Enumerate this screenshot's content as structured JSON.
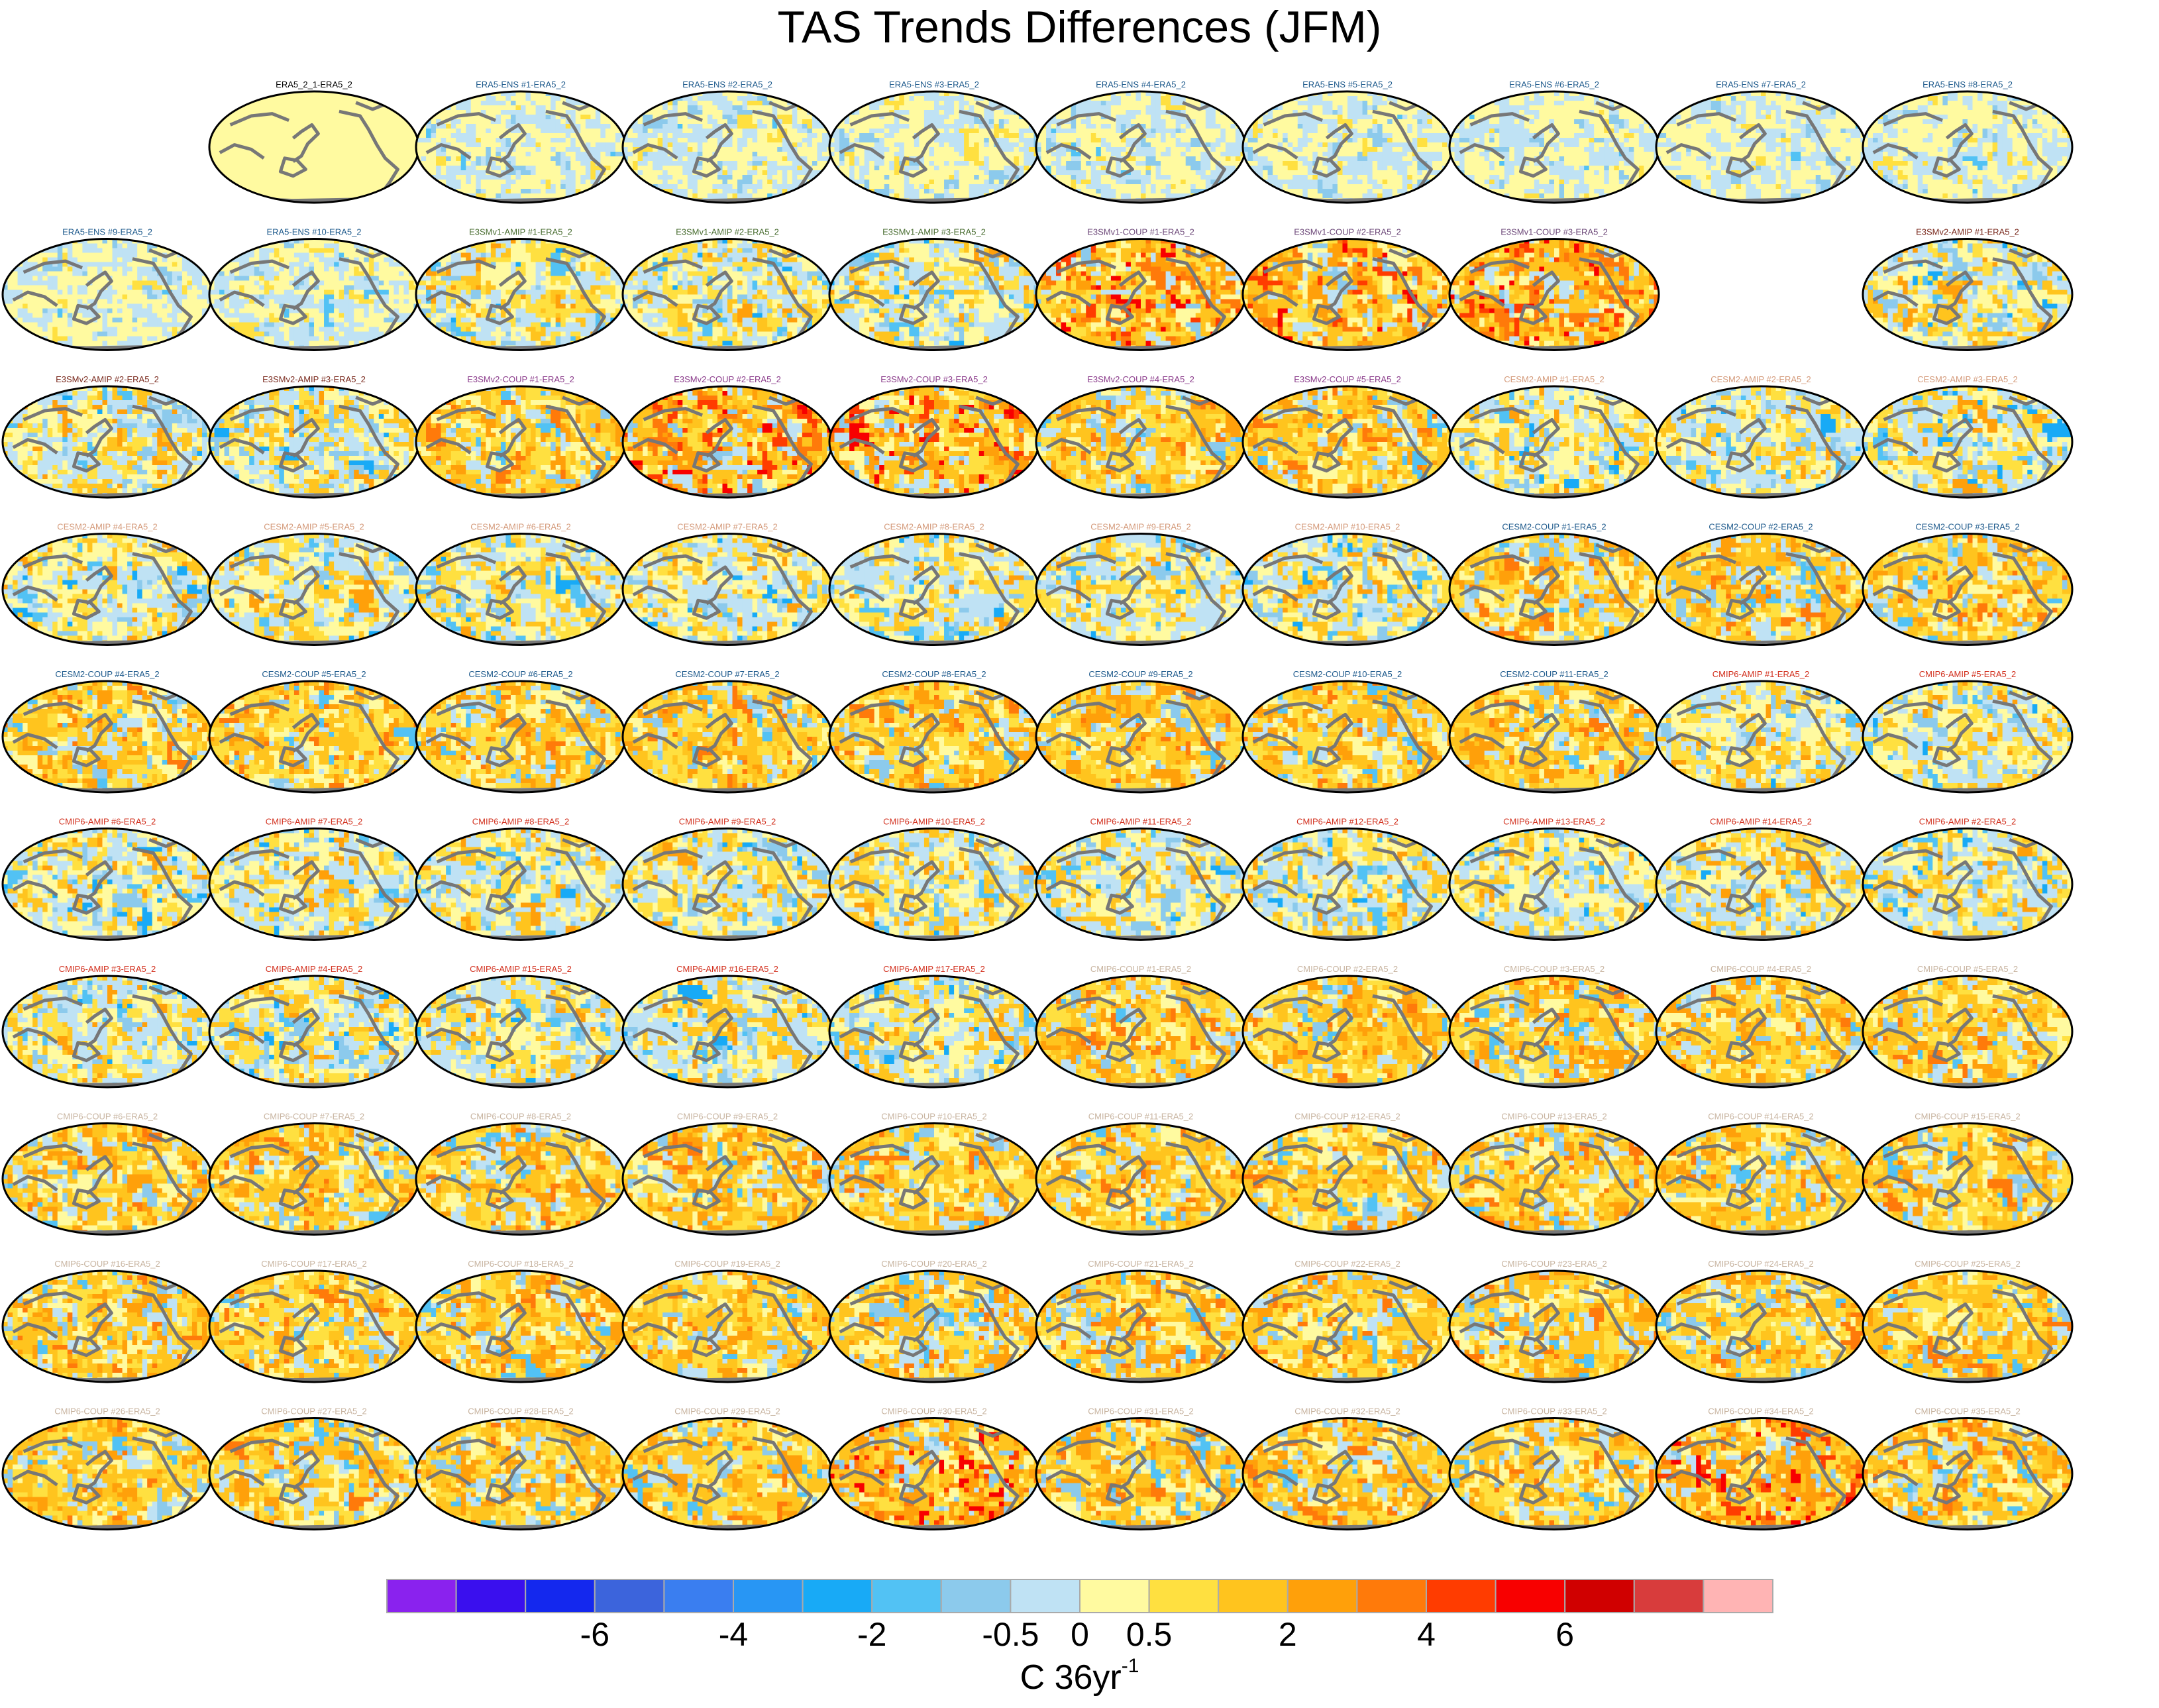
{
  "chart_data": {
    "type": "heatmap",
    "title": "TAS Trends Differences (JFM)",
    "units": "C 36yr",
    "units_superscript": "-1",
    "colorbar": {
      "colors": [
        "#8a22ee",
        "#3a0fee",
        "#1428ee",
        "#3c64dc",
        "#3a7ef0",
        "#2896f4",
        "#18aaf6",
        "#52c2f4",
        "#8ccaec",
        "#bfe2f4",
        "#fffaa0",
        "#ffe040",
        "#ffc41e",
        "#ffa00a",
        "#ff7a0a",
        "#ff3c00",
        "#f80000",
        "#d00000",
        "#d83c3c",
        "#ffb4b4"
      ],
      "tick_labels": [
        {
          "label": "-6",
          "boundary": 3
        },
        {
          "label": "-4",
          "boundary": 5
        },
        {
          "label": "-2",
          "boundary": 7
        },
        {
          "label": "-0.5",
          "boundary": 9
        },
        {
          "label": "0",
          "boundary": 10
        },
        {
          "label": "0.5",
          "boundary": 11
        },
        {
          "label": "2",
          "boundary": 13
        },
        {
          "label": "4",
          "boundary": 15
        },
        {
          "label": "6",
          "boundary": 17
        }
      ]
    },
    "group_colors": {
      "obs": "#000000",
      "ens": "#1e5a8c",
      "e3smv1": "#4a6e32",
      "e3smv1c": "#6e4a7a",
      "e3smv2": "#7a2a1e",
      "e3smv2c": "#8a3a8a",
      "cesm2a": "#d49a7a",
      "cesm2c": "#1e5a8c",
      "cmip6a": "#d2301e",
      "cmip6c": "#c8b4a0"
    },
    "panels": [
      [
        null,
        {
          "label": "ERA5_2_1-ERA5_2",
          "group": "obs",
          "style": "uniform"
        },
        {
          "label": "ERA5-ENS    #1-ERA5_2",
          "group": "ens",
          "style": "ens"
        },
        {
          "label": "ERA5-ENS    #2-ERA5_2",
          "group": "ens",
          "style": "ens"
        },
        {
          "label": "ERA5-ENS    #3-ERA5_2",
          "group": "ens",
          "style": "ens"
        },
        {
          "label": "ERA5-ENS    #4-ERA5_2",
          "group": "ens",
          "style": "ens"
        },
        {
          "label": "ERA5-ENS    #5-ERA5_2",
          "group": "ens",
          "style": "ens"
        },
        {
          "label": "ERA5-ENS    #6-ERA5_2",
          "group": "ens",
          "style": "ens"
        },
        {
          "label": "ERA5-ENS    #7-ERA5_2",
          "group": "ens",
          "style": "ens"
        },
        {
          "label": "ERA5-ENS    #8-ERA5_2",
          "group": "ens",
          "style": "ens"
        }
      ],
      [
        {
          "label": "ERA5-ENS    #9-ERA5_2",
          "group": "ens",
          "style": "ens"
        },
        {
          "label": "ERA5-ENS    #10-ERA5_2",
          "group": "ens",
          "style": "ens"
        },
        {
          "label": "E3SMv1-AMIP #1-ERA5_2",
          "group": "e3smv1",
          "style": "amip"
        },
        {
          "label": "E3SMv1-AMIP #2-ERA5_2",
          "group": "e3smv1",
          "style": "amip"
        },
        {
          "label": "E3SMv1-AMIP #3-ERA5_2",
          "group": "e3smv1",
          "style": "amip"
        },
        {
          "label": "E3SMv1-COUP #1-ERA5_2",
          "group": "e3smv1c",
          "style": "hot"
        },
        {
          "label": "E3SMv1-COUP #2-ERA5_2",
          "group": "e3smv1c",
          "style": "hot"
        },
        {
          "label": "E3SMv1-COUP #3-ERA5_2",
          "group": "e3smv1c",
          "style": "hot"
        },
        null,
        {
          "label": "E3SMv2-AMIP #1-ERA5_2",
          "group": "e3smv2",
          "style": "amip"
        }
      ],
      [
        {
          "label": "E3SMv2-AMIP #2-ERA5_2",
          "group": "e3smv2",
          "style": "amip"
        },
        {
          "label": "E3SMv2-AMIP #3-ERA5_2",
          "group": "e3smv2",
          "style": "amip"
        },
        {
          "label": "E3SMv2-COUP #1-ERA5_2",
          "group": "e3smv2c",
          "style": "coup"
        },
        {
          "label": "E3SMv2-COUP #2-ERA5_2",
          "group": "e3smv2c",
          "style": "hot"
        },
        {
          "label": "E3SMv2-COUP #3-ERA5_2",
          "group": "e3smv2c",
          "style": "hot"
        },
        {
          "label": "E3SMv2-COUP #4-ERA5_2",
          "group": "e3smv2c",
          "style": "coup"
        },
        {
          "label": "E3SMv2-COUP #5-ERA5_2",
          "group": "e3smv2c",
          "style": "coup"
        },
        {
          "label": "CESM2-AMIP  #1-ERA5_2",
          "group": "cesm2a",
          "style": "amip"
        },
        {
          "label": "CESM2-AMIP  #2-ERA5_2",
          "group": "cesm2a",
          "style": "amip"
        },
        {
          "label": "CESM2-AMIP  #3-ERA5_2",
          "group": "cesm2a",
          "style": "amip"
        }
      ],
      [
        {
          "label": "CESM2-AMIP  #4-ERA5_2",
          "group": "cesm2a",
          "style": "amip"
        },
        {
          "label": "CESM2-AMIP  #5-ERA5_2",
          "group": "cesm2a",
          "style": "amip"
        },
        {
          "label": "CESM2-AMIP  #6-ERA5_2",
          "group": "cesm2a",
          "style": "amip"
        },
        {
          "label": "CESM2-AMIP  #7-ERA5_2",
          "group": "cesm2a",
          "style": "amip"
        },
        {
          "label": "CESM2-AMIP  #8-ERA5_2",
          "group": "cesm2a",
          "style": "amip"
        },
        {
          "label": "CESM2-AMIP  #9-ERA5_2",
          "group": "cesm2a",
          "style": "amip"
        },
        {
          "label": "CESM2-AMIP  #10-ERA5_2",
          "group": "cesm2a",
          "style": "amip"
        },
        {
          "label": "CESM2-COUP  #1-ERA5_2",
          "group": "cesm2c",
          "style": "coup"
        },
        {
          "label": "CESM2-COUP  #2-ERA5_2",
          "group": "cesm2c",
          "style": "coup"
        },
        {
          "label": "CESM2-COUP  #3-ERA5_2",
          "group": "cesm2c",
          "style": "coup"
        }
      ],
      [
        {
          "label": "CESM2-COUP  #4-ERA5_2",
          "group": "cesm2c",
          "style": "coup"
        },
        {
          "label": "CESM2-COUP  #5-ERA5_2",
          "group": "cesm2c",
          "style": "coup"
        },
        {
          "label": "CESM2-COUP  #6-ERA5_2",
          "group": "cesm2c",
          "style": "coup"
        },
        {
          "label": "CESM2-COUP  #7-ERA5_2",
          "group": "cesm2c",
          "style": "coup"
        },
        {
          "label": "CESM2-COUP  #8-ERA5_2",
          "group": "cesm2c",
          "style": "coup"
        },
        {
          "label": "CESM2-COUP  #9-ERA5_2",
          "group": "cesm2c",
          "style": "coup"
        },
        {
          "label": "CESM2-COUP  #10-ERA5_2",
          "group": "cesm2c",
          "style": "coup"
        },
        {
          "label": "CESM2-COUP  #11-ERA5_2",
          "group": "cesm2c",
          "style": "coup"
        },
        {
          "label": "CMIP6-AMIP  #1-ERA5_2",
          "group": "cmip6a",
          "style": "amip"
        },
        {
          "label": "CMIP6-AMIP  #5-ERA5_2",
          "group": "cmip6a",
          "style": "amip"
        }
      ],
      [
        {
          "label": "CMIP6-AMIP  #6-ERA5_2",
          "group": "cmip6a",
          "style": "amip"
        },
        {
          "label": "CMIP6-AMIP  #7-ERA5_2",
          "group": "cmip6a",
          "style": "amip"
        },
        {
          "label": "CMIP6-AMIP  #8-ERA5_2",
          "group": "cmip6a",
          "style": "amip"
        },
        {
          "label": "CMIP6-AMIP  #9-ERA5_2",
          "group": "cmip6a",
          "style": "amip"
        },
        {
          "label": "CMIP6-AMIP  #10-ERA5_2",
          "group": "cmip6a",
          "style": "amip"
        },
        {
          "label": "CMIP6-AMIP  #11-ERA5_2",
          "group": "cmip6a",
          "style": "amip"
        },
        {
          "label": "CMIP6-AMIP  #12-ERA5_2",
          "group": "cmip6a",
          "style": "amip"
        },
        {
          "label": "CMIP6-AMIP  #13-ERA5_2",
          "group": "cmip6a",
          "style": "amip"
        },
        {
          "label": "CMIP6-AMIP  #14-ERA5_2",
          "group": "cmip6a",
          "style": "amip"
        },
        {
          "label": "CMIP6-AMIP  #2-ERA5_2",
          "group": "cmip6a",
          "style": "amip"
        }
      ],
      [
        {
          "label": "CMIP6-AMIP  #3-ERA5_2",
          "group": "cmip6a",
          "style": "amip"
        },
        {
          "label": "CMIP6-AMIP  #4-ERA5_2",
          "group": "cmip6a",
          "style": "amip"
        },
        {
          "label": "CMIP6-AMIP  #15-ERA5_2",
          "group": "cmip6a",
          "style": "amip"
        },
        {
          "label": "CMIP6-AMIP  #16-ERA5_2",
          "group": "cmip6a",
          "style": "amip"
        },
        {
          "label": "CMIP6-AMIP  #17-ERA5_2",
          "group": "cmip6a",
          "style": "amip"
        },
        {
          "label": "CMIP6-COUP  #1-ERA5_2",
          "group": "cmip6c",
          "style": "coup"
        },
        {
          "label": "CMIP6-COUP  #2-ERA5_2",
          "group": "cmip6c",
          "style": "coup"
        },
        {
          "label": "CMIP6-COUP  #3-ERA5_2",
          "group": "cmip6c",
          "style": "coup"
        },
        {
          "label": "CMIP6-COUP  #4-ERA5_2",
          "group": "cmip6c",
          "style": "coup"
        },
        {
          "label": "CMIP6-COUP  #5-ERA5_2",
          "group": "cmip6c",
          "style": "coup"
        }
      ],
      [
        {
          "label": "CMIP6-COUP  #6-ERA5_2",
          "group": "cmip6c",
          "style": "coup"
        },
        {
          "label": "CMIP6-COUP  #7-ERA5_2",
          "group": "cmip6c",
          "style": "coup"
        },
        {
          "label": "CMIP6-COUP  #8-ERA5_2",
          "group": "cmip6c",
          "style": "coup"
        },
        {
          "label": "CMIP6-COUP  #9-ERA5_2",
          "group": "cmip6c",
          "style": "coup"
        },
        {
          "label": "CMIP6-COUP  #10-ERA5_2",
          "group": "cmip6c",
          "style": "coup"
        },
        {
          "label": "CMIP6-COUP  #11-ERA5_2",
          "group": "cmip6c",
          "style": "coup"
        },
        {
          "label": "CMIP6-COUP  #12-ERA5_2",
          "group": "cmip6c",
          "style": "coup"
        },
        {
          "label": "CMIP6-COUP  #13-ERA5_2",
          "group": "cmip6c",
          "style": "coup"
        },
        {
          "label": "CMIP6-COUP  #14-ERA5_2",
          "group": "cmip6c",
          "style": "coup"
        },
        {
          "label": "CMIP6-COUP  #15-ERA5_2",
          "group": "cmip6c",
          "style": "coup"
        }
      ],
      [
        {
          "label": "CMIP6-COUP  #16-ERA5_2",
          "group": "cmip6c",
          "style": "coup"
        },
        {
          "label": "CMIP6-COUP  #17-ERA5_2",
          "group": "cmip6c",
          "style": "coup"
        },
        {
          "label": "CMIP6-COUP  #18-ERA5_2",
          "group": "cmip6c",
          "style": "coup"
        },
        {
          "label": "CMIP6-COUP  #19-ERA5_2",
          "group": "cmip6c",
          "style": "coup"
        },
        {
          "label": "CMIP6-COUP  #20-ERA5_2",
          "group": "cmip6c",
          "style": "coup"
        },
        {
          "label": "CMIP6-COUP  #21-ERA5_2",
          "group": "cmip6c",
          "style": "coup"
        },
        {
          "label": "CMIP6-COUP  #22-ERA5_2",
          "group": "cmip6c",
          "style": "coup"
        },
        {
          "label": "CMIP6-COUP  #23-ERA5_2",
          "group": "cmip6c",
          "style": "coup"
        },
        {
          "label": "CMIP6-COUP  #24-ERA5_2",
          "group": "cmip6c",
          "style": "coup"
        },
        {
          "label": "CMIP6-COUP  #25-ERA5_2",
          "group": "cmip6c",
          "style": "coup"
        }
      ],
      [
        {
          "label": "CMIP6-COUP  #26-ERA5_2",
          "group": "cmip6c",
          "style": "coup"
        },
        {
          "label": "CMIP6-COUP  #27-ERA5_2",
          "group": "cmip6c",
          "style": "coup"
        },
        {
          "label": "CMIP6-COUP  #28-ERA5_2",
          "group": "cmip6c",
          "style": "coup"
        },
        {
          "label": "CMIP6-COUP  #29-ERA5_2",
          "group": "cmip6c",
          "style": "coup"
        },
        {
          "label": "CMIP6-COUP  #30-ERA5_2",
          "group": "cmip6c",
          "style": "hot"
        },
        {
          "label": "CMIP6-COUP  #31-ERA5_2",
          "group": "cmip6c",
          "style": "coup"
        },
        {
          "label": "CMIP6-COUP  #32-ERA5_2",
          "group": "cmip6c",
          "style": "coup"
        },
        {
          "label": "CMIP6-COUP  #33-ERA5_2",
          "group": "cmip6c",
          "style": "coup"
        },
        {
          "label": "CMIP6-COUP  #34-ERA5_2",
          "group": "cmip6c",
          "style": "hot"
        },
        {
          "label": "CMIP6-COUP  #35-ERA5_2",
          "group": "cmip6c",
          "style": "coup"
        }
      ]
    ]
  }
}
